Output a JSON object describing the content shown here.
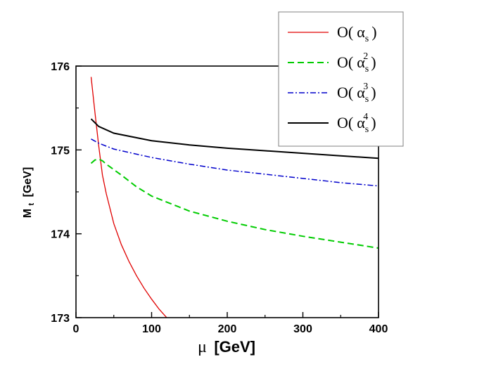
{
  "chart_data": {
    "type": "line",
    "xlabel": {
      "symbol": "μ",
      "unit": "[GeV]"
    },
    "ylabel": {
      "main": "M",
      "sub": "t",
      "unit": "[GeV]"
    },
    "xlim": [
      0,
      400
    ],
    "ylim": [
      173,
      176
    ],
    "x_ticks": [
      0,
      100,
      200,
      300,
      400
    ],
    "y_ticks": [
      173,
      174,
      175,
      176
    ],
    "x_tick_labels": [
      "0",
      "100",
      "200",
      "300",
      "400"
    ],
    "y_tick_labels": [
      "173",
      "174",
      "175",
      "176"
    ],
    "grid": false,
    "legend_position": "top-right",
    "series": [
      {
        "label": {
          "prefix": "O(",
          "symbol": "α",
          "sub": "s",
          "sup": "",
          "suffix": ")"
        },
        "color": "#e00000",
        "dash": "solid-thin",
        "points": [
          [
            20,
            175.87
          ],
          [
            25,
            175.45
          ],
          [
            30,
            175.05
          ],
          [
            35,
            174.7
          ],
          [
            40,
            174.48
          ],
          [
            50,
            174.12
          ],
          [
            60,
            173.87
          ],
          [
            70,
            173.67
          ],
          [
            80,
            173.5
          ],
          [
            90,
            173.35
          ],
          [
            100,
            173.22
          ],
          [
            110,
            173.1
          ],
          [
            120,
            173.0
          ]
        ]
      },
      {
        "label": {
          "prefix": "O(",
          "symbol": "α",
          "sub": "s",
          "sup": "2",
          "suffix": ")"
        },
        "color": "#00cc00",
        "dash": "dashed",
        "points": [
          [
            20,
            174.84
          ],
          [
            25,
            174.88
          ],
          [
            30,
            174.89
          ],
          [
            35,
            174.87
          ],
          [
            40,
            174.83
          ],
          [
            60,
            174.7
          ],
          [
            80,
            174.56
          ],
          [
            100,
            174.45
          ],
          [
            150,
            174.27
          ],
          [
            200,
            174.15
          ],
          [
            250,
            174.05
          ],
          [
            300,
            173.97
          ],
          [
            350,
            173.9
          ],
          [
            400,
            173.83
          ]
        ]
      },
      {
        "label": {
          "prefix": "O(",
          "symbol": "α",
          "sub": "s",
          "sup": "3",
          "suffix": ")"
        },
        "color": "#0000cc",
        "dash": "dash-dot",
        "points": [
          [
            20,
            175.13
          ],
          [
            30,
            175.08
          ],
          [
            50,
            175.01
          ],
          [
            100,
            174.91
          ],
          [
            150,
            174.83
          ],
          [
            200,
            174.76
          ],
          [
            250,
            174.71
          ],
          [
            300,
            174.66
          ],
          [
            350,
            174.61
          ],
          [
            400,
            174.57
          ]
        ]
      },
      {
        "label": {
          "prefix": "O(",
          "symbol": "α",
          "sub": "s",
          "sup": "4",
          "suffix": ")"
        },
        "color": "#000000",
        "dash": "solid",
        "points": [
          [
            20,
            175.37
          ],
          [
            30,
            175.28
          ],
          [
            50,
            175.2
          ],
          [
            100,
            175.11
          ],
          [
            150,
            175.06
          ],
          [
            200,
            175.02
          ],
          [
            250,
            174.99
          ],
          [
            300,
            174.96
          ],
          [
            350,
            174.93
          ],
          [
            400,
            174.9
          ]
        ]
      }
    ]
  }
}
